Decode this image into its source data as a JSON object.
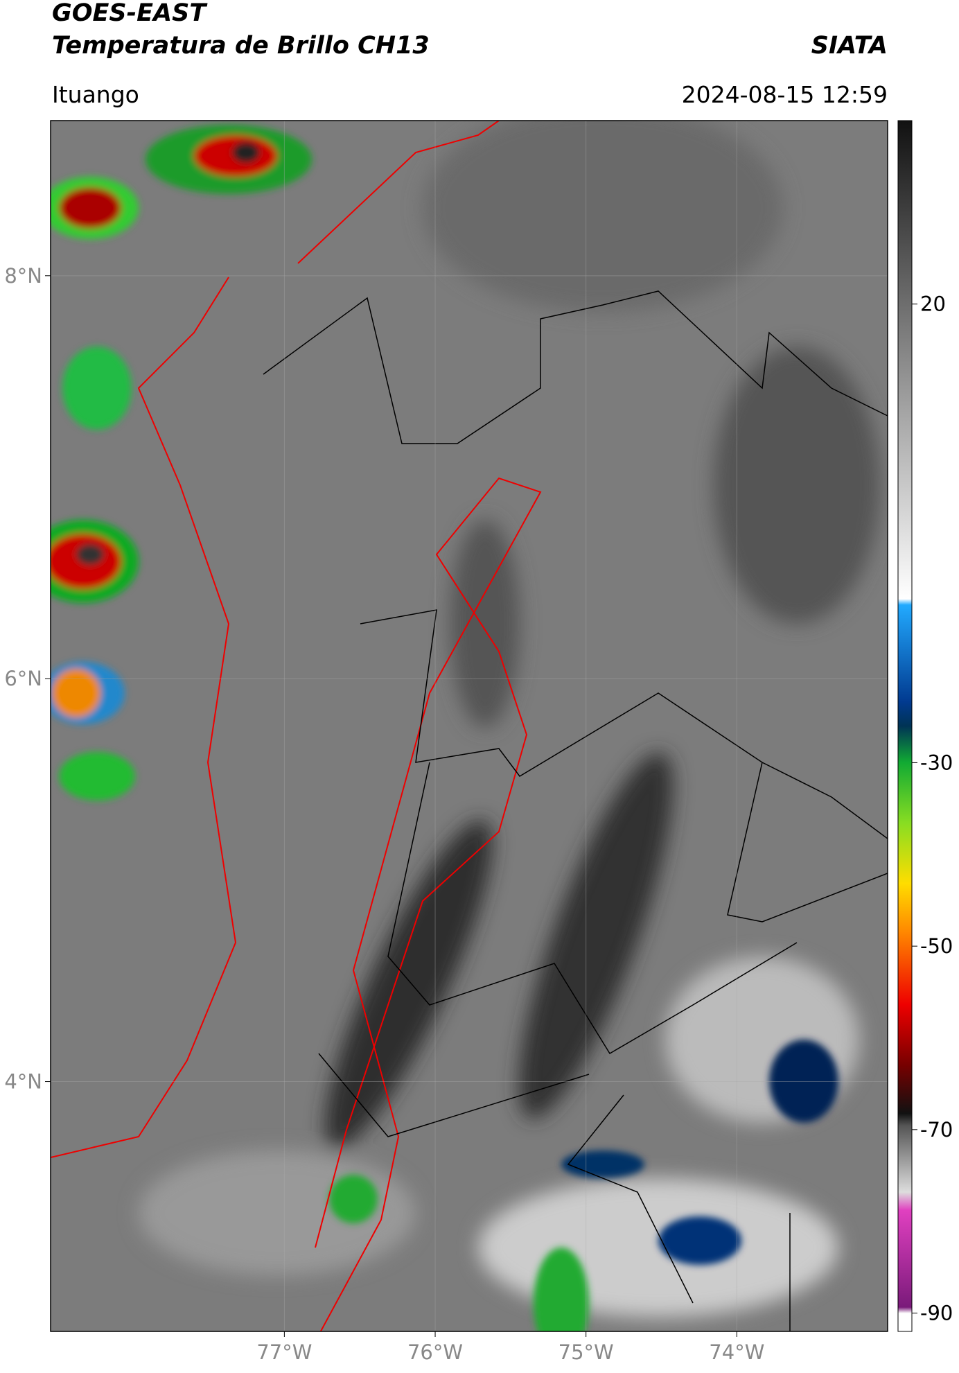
{
  "header": {
    "title_line1": "GOES-EAST",
    "title_line2": "Temperatura de Brillo CH13",
    "agency": "SIATA",
    "location": "Ituango",
    "datetime": "2024-08-15 12:59"
  },
  "map": {
    "xlim": [
      -78.55,
      -73.0
    ],
    "ylim": [
      2.76,
      8.77
    ],
    "xticks": [
      {
        "value": -77,
        "label": "77°W"
      },
      {
        "value": -76,
        "label": "76°W"
      },
      {
        "value": -75,
        "label": "75°W"
      },
      {
        "value": -74,
        "label": "74°W"
      }
    ],
    "yticks": [
      {
        "value": 8,
        "label": "8°N"
      },
      {
        "value": 6,
        "label": "6°N"
      },
      {
        "value": 4,
        "label": "4°N"
      }
    ],
    "grid": true
  },
  "colorbar": {
    "lim": [
      -92,
      40
    ],
    "ticks": [
      20,
      -30,
      -50,
      -70,
      -90
    ]
  }
}
